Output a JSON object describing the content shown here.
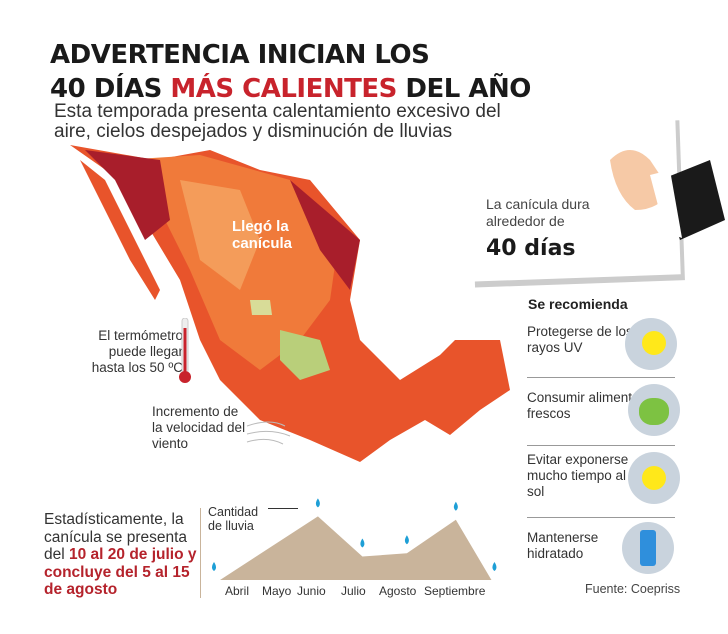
{
  "title": {
    "line1": "ADVERTENCIA INICIAN LOS",
    "line2_a": "40 DÍAS ",
    "line2_b": "MÁS CALIENTES",
    "line2_c": " DEL AÑO"
  },
  "subtitle": "Esta temporada presenta calentamiento excesivo del aire, cielos despejados y disminución de lluvias",
  "note": {
    "text": "La canícula dura alrededor de",
    "big": "40 días"
  },
  "map": {
    "label": "Llegó la canícula",
    "thermo_text": "El termómetro puede llegar hasta los 50 ºC",
    "wind_text": "Incremento de la velocidad del viento"
  },
  "recommend": {
    "title": "Se recomienda",
    "items": [
      {
        "text": "Protegerse de los rayos UV",
        "icon": "sun-icon"
      },
      {
        "text": "Consumir alimentos frescos",
        "icon": "apple-icon"
      },
      {
        "text": "Evitar exponerse mucho tiempo al sol",
        "icon": "sun-icon"
      },
      {
        "text": "Mantenerse hidratado",
        "icon": "water-bottle-icon"
      }
    ]
  },
  "stats": {
    "a": "Estadísticamente, la canícula se presenta del ",
    "b": "10 al 20 de julio y concluye del 5 al 15 de agosto"
  },
  "source": "Fuente: Coepriss",
  "colors": {
    "accent": "#c8232c",
    "chart": "#c9b49b",
    "drop": "#1e9fd6"
  },
  "chart_data": {
    "type": "area",
    "title": "Cantidad de lluvia",
    "label_arrow": "Cantidad de lluvia",
    "categories": [
      "Abril",
      "Mayo",
      "Junio",
      "Julio",
      "Agosto",
      "Septiembre"
    ],
    "points": [
      {
        "x": 0,
        "y": 0
      },
      {
        "x": 2.2,
        "y": 9.5
      },
      {
        "x": 3.2,
        "y": 3.5
      },
      {
        "x": 4.2,
        "y": 4
      },
      {
        "x": 5.3,
        "y": 9
      },
      {
        "x": 6.1,
        "y": 0
      }
    ],
    "ylim": [
      0,
      10
    ]
  }
}
